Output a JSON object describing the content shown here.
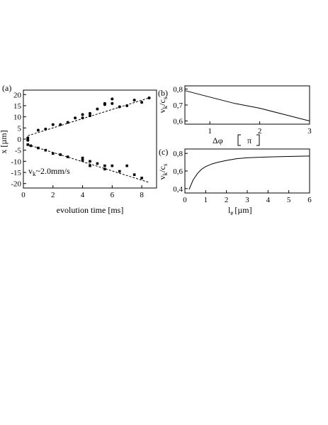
{
  "chart_data": [
    {
      "panel_label": "(a)",
      "type": "scatter",
      "xlabel": "evolution time [ms]",
      "ylabel": "x [µm]",
      "xlim": [
        0,
        9
      ],
      "ylim": [
        -22,
        22
      ],
      "xticks": [
        0,
        2,
        4,
        6,
        8
      ],
      "yticks": [
        20,
        15,
        10,
        5,
        0,
        -5,
        -10,
        -15,
        -20
      ],
      "annotation": "v",
      "annotation_sub": "k",
      "annotation_rest": "~2.0mm/s",
      "series": [
        {
          "marker": "circle",
          "points": [
            [
              0.3,
              0.5
            ],
            [
              0.3,
              -0.5
            ],
            [
              1.0,
              4.0
            ],
            [
              1.5,
              4.5
            ],
            [
              2.0,
              6.5
            ],
            [
              2.5,
              6.5
            ],
            [
              3.0,
              7.5
            ],
            [
              3.5,
              9.5
            ],
            [
              4.0,
              9.5
            ],
            [
              4.0,
              11.0
            ],
            [
              4.5,
              10.5
            ],
            [
              4.5,
              11.5
            ],
            [
              5.0,
              13.5
            ],
            [
              5.5,
              15.5
            ],
            [
              5.5,
              16.0
            ],
            [
              6.0,
              16.0
            ],
            [
              6.0,
              18.0
            ],
            [
              6.5,
              14.5
            ],
            [
              7.0,
              15.0
            ],
            [
              7.5,
              17.5
            ],
            [
              8.0,
              16.5
            ],
            [
              8.5,
              18.5
            ]
          ]
        },
        {
          "marker": "square",
          "points": [
            [
              0.3,
              -0.5
            ],
            [
              0.3,
              -2.5
            ],
            [
              0.5,
              -3.0
            ],
            [
              1.0,
              -4.0
            ],
            [
              1.5,
              -5.0
            ],
            [
              2.0,
              -6.5
            ],
            [
              2.5,
              -7.0
            ],
            [
              3.0,
              -8.0
            ],
            [
              4.0,
              -8.5
            ],
            [
              4.0,
              -9.5
            ],
            [
              4.5,
              -10.0
            ],
            [
              4.5,
              -12.0
            ],
            [
              5.0,
              -11.0
            ],
            [
              5.5,
              -12.0
            ],
            [
              5.5,
              -13.5
            ],
            [
              6.0,
              -12.0
            ],
            [
              6.5,
              -14.5
            ],
            [
              7.0,
              -12.0
            ],
            [
              7.5,
              -16.0
            ],
            [
              8.0,
              -17.5
            ]
          ]
        }
      ],
      "fits": [
        {
          "x": [
            0.3,
            8.5
          ],
          "y": [
            1.5,
            18.5
          ]
        },
        {
          "x": [
            0.3,
            8.5
          ],
          "y": [
            -2.5,
            -19.5
          ]
        }
      ]
    },
    {
      "panel_label": "(b)",
      "type": "line",
      "xlabel_symbol": "Δφ",
      "xlabel_unit": "π",
      "ylabel_main": "v",
      "ylabel_sub1": "k",
      "ylabel_slash": "/c",
      "ylabel_sub2": "s",
      "xlim": [
        0.5,
        3
      ],
      "ylim": [
        0.58,
        0.82
      ],
      "xticks": [
        1,
        2,
        3
      ],
      "yticks": [
        "0,8",
        "0,7",
        "0,6"
      ],
      "ytick_values": [
        0.8,
        0.7,
        0.6
      ],
      "x": [
        0.5,
        1.0,
        1.5,
        2.0,
        2.5,
        3.0
      ],
      "y": [
        0.79,
        0.75,
        0.71,
        0.68,
        0.64,
        0.6
      ]
    },
    {
      "panel_label": "(c)",
      "type": "line",
      "xlabel_main": "l",
      "xlabel_sub": "e",
      "xlabel_unit": "[µm]",
      "ylabel_main": "v",
      "ylabel_sub1": "k",
      "ylabel_slash": "/c",
      "ylabel_sub2": "s",
      "xlim": [
        0,
        6
      ],
      "ylim": [
        0.35,
        0.85
      ],
      "xticks": [
        0,
        1,
        2,
        3,
        4,
        5,
        6
      ],
      "yticks": [
        "0,8",
        "0,6",
        "0,4"
      ],
      "ytick_values": [
        0.8,
        0.6,
        0.4
      ],
      "x": [
        0.2,
        0.4,
        0.6,
        0.8,
        1.0,
        1.3,
        1.6,
        2.0,
        2.5,
        3.0,
        3.5,
        4.0,
        5.0,
        6.0
      ],
      "y": [
        0.39,
        0.5,
        0.57,
        0.62,
        0.65,
        0.68,
        0.7,
        0.72,
        0.74,
        0.75,
        0.755,
        0.76,
        0.765,
        0.77
      ]
    }
  ]
}
